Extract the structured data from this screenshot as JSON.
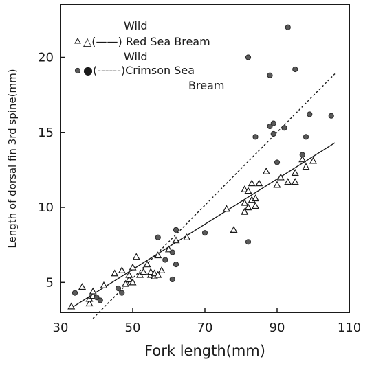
{
  "chart_data": {
    "type": "scatter",
    "title": "",
    "xlabel": "Fork length(mm)",
    "ylabel": "Length of dorsal fin 3rd spine(mm)",
    "xlim": [
      30,
      110
    ],
    "ylim": [
      3,
      23.5
    ],
    "x_ticks": [
      30,
      50,
      70,
      90,
      110
    ],
    "y_ticks": [
      5,
      10,
      15,
      20
    ],
    "grid": false,
    "legend_position": "top-left",
    "legend": [
      {
        "line1": "Wild",
        "line2": "△(——) Red Sea Bream"
      },
      {
        "line1": "Wild",
        "line2": "●(------)Crimson Sea",
        "line3": "Bream"
      }
    ],
    "series": [
      {
        "name": "Wild Red Sea Bream",
        "marker": "triangle",
        "line_style": "solid",
        "fit_line": [
          [
            33,
            3.3
          ],
          [
            106,
            14.3
          ]
        ],
        "points": [
          [
            33,
            3.4
          ],
          [
            36,
            4.7
          ],
          [
            38,
            3.6
          ],
          [
            38,
            3.9
          ],
          [
            39,
            4.1
          ],
          [
            39,
            4.4
          ],
          [
            42,
            4.8
          ],
          [
            45,
            5.6
          ],
          [
            47,
            5.8
          ],
          [
            48,
            4.9
          ],
          [
            49,
            5.2
          ],
          [
            49,
            5.5
          ],
          [
            50,
            5.0
          ],
          [
            50,
            6.0
          ],
          [
            51,
            6.7
          ],
          [
            52,
            5.5
          ],
          [
            53,
            5.7
          ],
          [
            54,
            6.2
          ],
          [
            55,
            5.5
          ],
          [
            55,
            5.7
          ],
          [
            56,
            5.4
          ],
          [
            56,
            5.6
          ],
          [
            57,
            5.5
          ],
          [
            57,
            6.8
          ],
          [
            58,
            5.8
          ],
          [
            60,
            7.2
          ],
          [
            62,
            7.8
          ],
          [
            65,
            8.0
          ],
          [
            76,
            9.9
          ],
          [
            78,
            8.5
          ],
          [
            81,
            11.2
          ],
          [
            81,
            9.7
          ],
          [
            81,
            10.3
          ],
          [
            82,
            11.1
          ],
          [
            82,
            10.0
          ],
          [
            83,
            11.6
          ],
          [
            83,
            10.5
          ],
          [
            84,
            10.6
          ],
          [
            84,
            10.1
          ],
          [
            85,
            11.6
          ],
          [
            87,
            12.4
          ],
          [
            90,
            11.5
          ],
          [
            91,
            12.0
          ],
          [
            93,
            11.7
          ],
          [
            95,
            11.7
          ],
          [
            95,
            12.3
          ],
          [
            97,
            13.2
          ],
          [
            98,
            12.7
          ],
          [
            100,
            13.1
          ]
        ]
      },
      {
        "name": "Wild Crimson Sea Bream",
        "marker": "circle",
        "line_style": "dashed",
        "fit_line": [
          [
            39,
            2.6
          ],
          [
            106,
            18.9
          ]
        ],
        "points": [
          [
            34,
            4.3
          ],
          [
            40,
            4.0
          ],
          [
            41,
            3.8
          ],
          [
            46,
            4.6
          ],
          [
            47,
            4.3
          ],
          [
            57,
            8.0
          ],
          [
            59,
            6.5
          ],
          [
            61,
            5.2
          ],
          [
            61,
            7.0
          ],
          [
            62,
            8.5
          ],
          [
            62,
            6.2
          ],
          [
            70,
            8.3
          ],
          [
            82,
            20.0
          ],
          [
            82,
            7.7
          ],
          [
            84,
            14.7
          ],
          [
            88,
            18.8
          ],
          [
            88,
            15.4
          ],
          [
            89,
            15.6
          ],
          [
            89,
            14.9
          ],
          [
            90,
            13.0
          ],
          [
            92,
            15.3
          ],
          [
            93,
            22.0
          ],
          [
            95,
            19.2
          ],
          [
            97,
            13.5
          ],
          [
            98,
            14.7
          ],
          [
            99,
            16.2
          ],
          [
            105,
            16.1
          ]
        ]
      }
    ]
  }
}
